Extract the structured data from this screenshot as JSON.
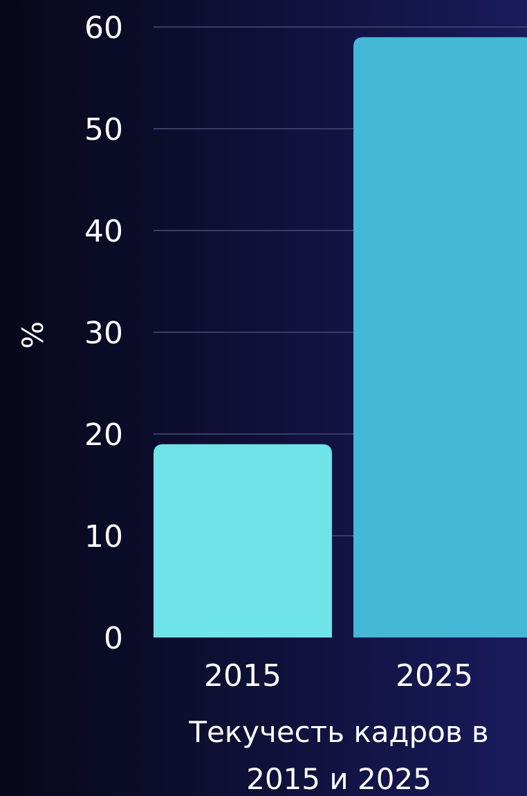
{
  "chart_data": {
    "type": "bar",
    "categories": [
      "2015",
      "2025"
    ],
    "values": [
      19,
      59
    ],
    "xlabel": "Текучесть кадров в 2015 и 2025",
    "ylabel": "%",
    "ylim": [
      0,
      60
    ],
    "yticks": [
      0,
      10,
      20,
      30,
      40,
      50,
      60
    ],
    "grid": true,
    "colors": [
      "#6ee3e8",
      "#45b8d6"
    ]
  }
}
